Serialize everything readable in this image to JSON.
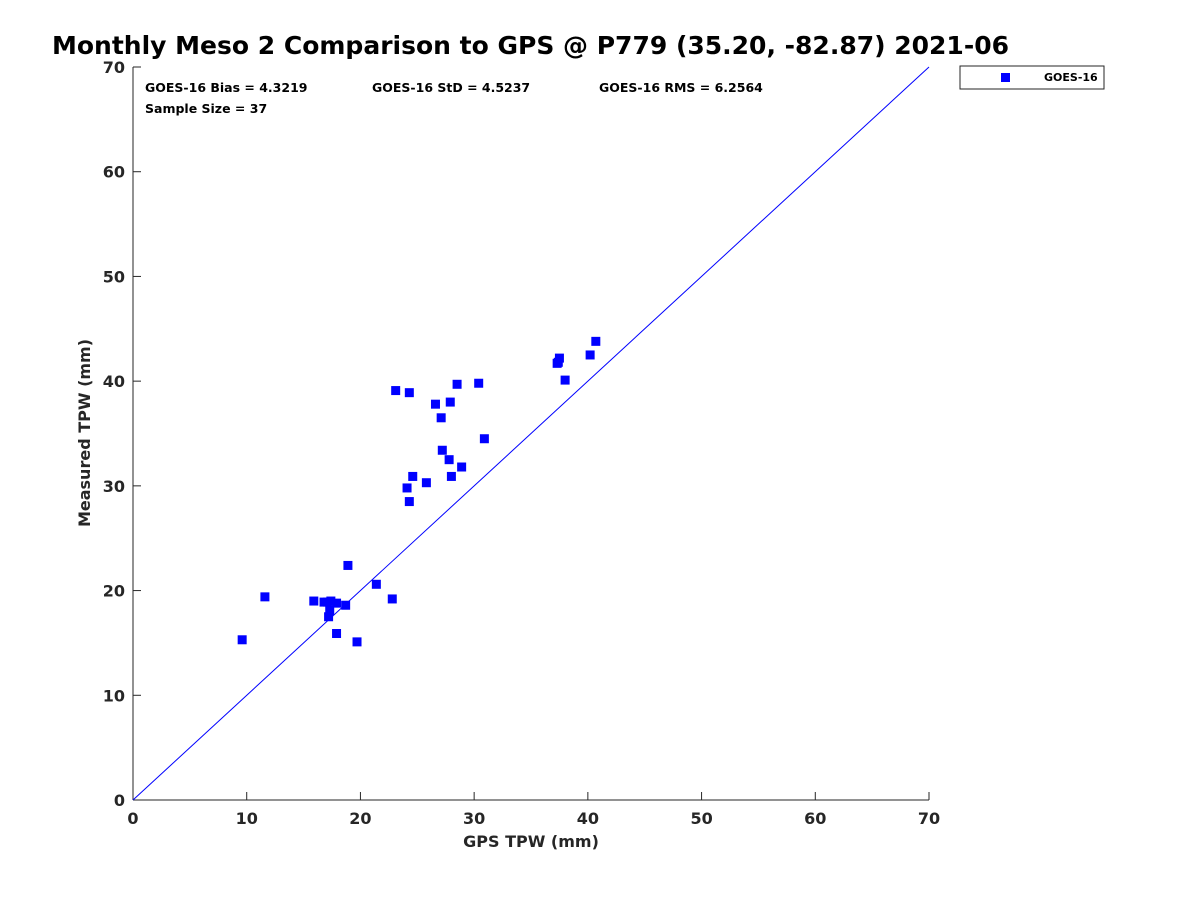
{
  "chart_data": {
    "type": "scatter",
    "title": "Monthly Meso 2 Comparison to GPS @ P779 (35.20, -82.87) 2021-06",
    "xlabel": "GPS TPW (mm)",
    "ylabel": "Measured TPW (mm)",
    "xlim": [
      0,
      70
    ],
    "ylim": [
      0,
      70
    ],
    "xticks": [
      0,
      10,
      20,
      30,
      40,
      50,
      60,
      70
    ],
    "yticks": [
      0,
      10,
      20,
      30,
      40,
      50,
      60,
      70
    ],
    "grid": false,
    "legend_position": "outside-top-right",
    "stats": {
      "bias": "GOES-16 Bias = 4.3219",
      "std": "GOES-16 StD = 4.5237",
      "rms": "GOES-16 RMS = 6.2564",
      "sample": "Sample Size = 37"
    },
    "reference_line": {
      "label": "1:1",
      "from": [
        0,
        0
      ],
      "to": [
        70,
        70
      ],
      "color": "#0000ff"
    },
    "series": [
      {
        "name": "GOES-16",
        "color": "#0000ff",
        "marker": "square",
        "points": [
          [
            9.6,
            15.3
          ],
          [
            11.6,
            19.4
          ],
          [
            15.9,
            19.0
          ],
          [
            16.8,
            18.9
          ],
          [
            17.2,
            17.5
          ],
          [
            17.3,
            18.1
          ],
          [
            17.4,
            19.0
          ],
          [
            17.9,
            18.8
          ],
          [
            17.9,
            15.9
          ],
          [
            18.7,
            18.6
          ],
          [
            18.9,
            22.4
          ],
          [
            19.7,
            15.1
          ],
          [
            21.4,
            20.6
          ],
          [
            22.8,
            19.2
          ],
          [
            23.1,
            39.1
          ],
          [
            24.1,
            29.8
          ],
          [
            24.3,
            28.5
          ],
          [
            24.3,
            38.9
          ],
          [
            24.6,
            30.9
          ],
          [
            25.8,
            30.3
          ],
          [
            26.6,
            37.8
          ],
          [
            27.1,
            36.5
          ],
          [
            27.2,
            33.4
          ],
          [
            27.8,
            32.5
          ],
          [
            27.9,
            38.0
          ],
          [
            28.0,
            30.9
          ],
          [
            28.5,
            39.7
          ],
          [
            28.9,
            31.8
          ],
          [
            30.4,
            39.8
          ],
          [
            30.9,
            34.5
          ],
          [
            37.3,
            41.7
          ],
          [
            37.5,
            42.2
          ],
          [
            38.0,
            40.1
          ],
          [
            40.2,
            42.5
          ],
          [
            40.7,
            43.8
          ],
          [
            37.4,
            41.8
          ],
          [
            17.1,
            18.9
          ]
        ]
      }
    ]
  }
}
